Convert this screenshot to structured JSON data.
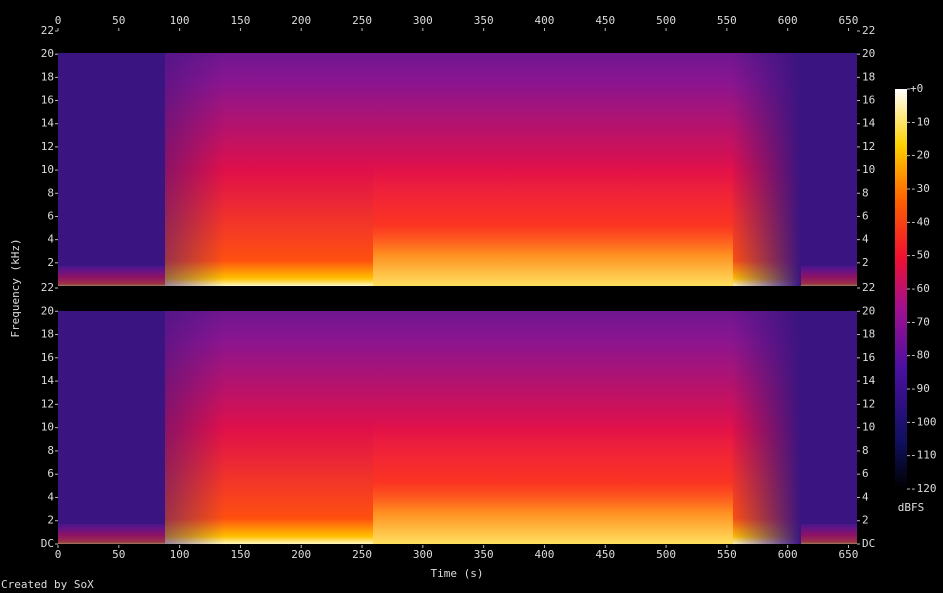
{
  "chart_data": {
    "type": "spectrogram",
    "xlabel": "Time (s)",
    "ylabel": "Frequency (kHz)",
    "footer": "Created by SoX",
    "xlim": [
      0,
      657
    ],
    "xticks": [
      0,
      50,
      100,
      150,
      200,
      250,
      300,
      350,
      400,
      450,
      500,
      550,
      600,
      650
    ],
    "panels": [
      {
        "ylim": [
          0,
          22
        ],
        "yticks": [
          2,
          4,
          6,
          8,
          10,
          12,
          14,
          16,
          18,
          20,
          22
        ]
      },
      {
        "ylim": [
          0,
          22
        ],
        "yticks": [
          {
            "value": 0,
            "label": "DC"
          },
          2,
          4,
          6,
          8,
          10,
          12,
          14,
          16,
          18,
          20,
          22
        ]
      }
    ],
    "colorbar": {
      "label": "dBFS",
      "ylim": [
        -120,
        0
      ],
      "yticks": [
        {
          "value": 0,
          "label": "+0"
        },
        -10,
        -20,
        -30,
        -40,
        -50,
        -60,
        -70,
        -80,
        -90,
        -100,
        -110,
        -120
      ]
    }
  }
}
